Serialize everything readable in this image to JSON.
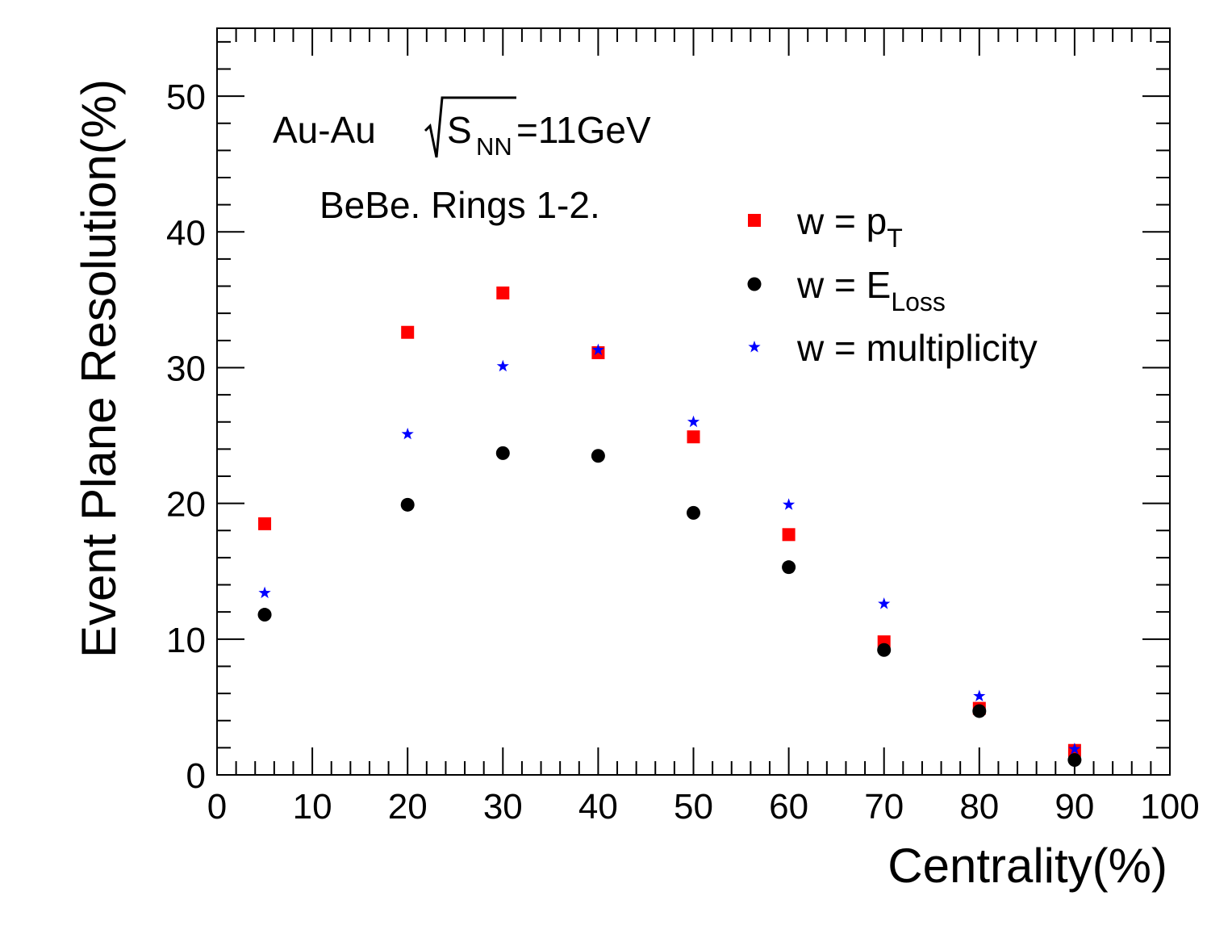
{
  "chart_data": {
    "type": "scatter",
    "xlabel": "Centrality(%)",
    "ylabel": "Event Plane Resolution(%)",
    "xlim": [
      0,
      100
    ],
    "ylim": [
      0,
      55
    ],
    "x_ticks": [
      "0",
      "10",
      "20",
      "30",
      "40",
      "50",
      "60",
      "70",
      "80",
      "90",
      "100"
    ],
    "y_ticks": [
      "0",
      "10",
      "20",
      "30",
      "40",
      "50"
    ],
    "x_tick_values": [
      0,
      10,
      20,
      30,
      40,
      50,
      60,
      70,
      80,
      90,
      100
    ],
    "y_tick_values": [
      0,
      10,
      20,
      30,
      40,
      50
    ],
    "grid": false,
    "legend_position": "top-right",
    "annotations": {
      "system": "Au-Au",
      "sqrt_s": "S",
      "sqrt_s_sub": "NN",
      "energy": "=11GeV",
      "detector": "BeBe. Rings 1-2."
    },
    "x": [
      5,
      20,
      30,
      40,
      50,
      60,
      70,
      80,
      90
    ],
    "series": [
      {
        "name": "w = p",
        "name_sub": "T",
        "marker": "square",
        "color": "#ff0000",
        "values": [
          18.5,
          32.6,
          35.5,
          31.1,
          24.9,
          17.7,
          9.8,
          4.9,
          1.8
        ]
      },
      {
        "name": "w = E",
        "name_sub": "Loss",
        "marker": "circle",
        "color": "#000000",
        "values": [
          11.8,
          19.9,
          23.7,
          23.5,
          19.3,
          15.3,
          9.2,
          4.7,
          1.1
        ]
      },
      {
        "name": "w = multiplicity",
        "name_sub": "",
        "marker": "star",
        "color": "#0000ff",
        "values": [
          13.4,
          25.1,
          30.1,
          31.3,
          26.0,
          19.9,
          12.6,
          5.8,
          1.9
        ]
      }
    ]
  }
}
